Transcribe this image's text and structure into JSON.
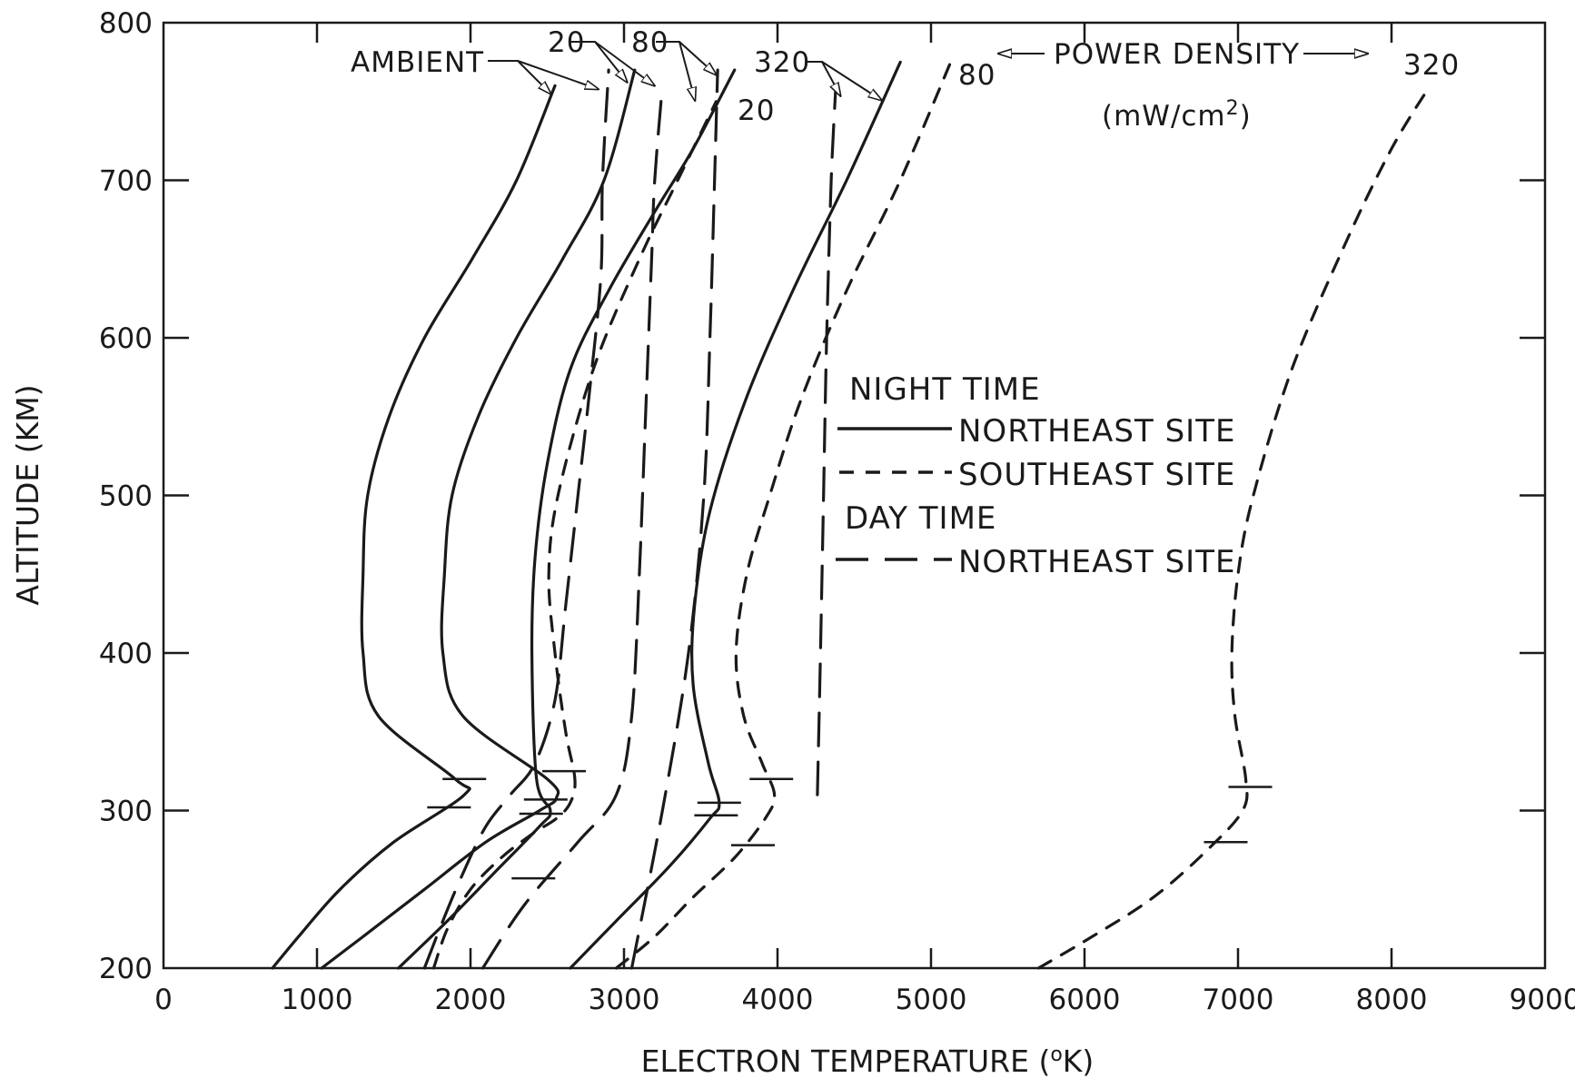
{
  "chart_data": {
    "type": "line",
    "xlabel": "ELECTRON TEMPERATURE (",
    "xlabel_sup": "o",
    "xlabel_tail": "K)",
    "ylabel": "ALTITUDE (KM)",
    "xlim": [
      0,
      9000
    ],
    "ylim": [
      200,
      800
    ],
    "x_ticks": [
      0,
      1000,
      2000,
      3000,
      4000,
      5000,
      6000,
      7000,
      8000,
      9000
    ],
    "x_tick_labels": [
      "0",
      "1000",
      "2000",
      "3000",
      "4000",
      "5000",
      "6000",
      "7000",
      "8000",
      "9000"
    ],
    "y_ticks": [
      200,
      300,
      400,
      500,
      600,
      700,
      800
    ],
    "y_tick_labels": [
      "200",
      "300",
      "400",
      "500",
      "600",
      "700",
      "800"
    ],
    "grid": false,
    "legend_position": "center-right",
    "legend": {
      "night_heading": "NIGHT TIME",
      "night_ne": "NORTHEAST SITE",
      "night_se": "SOUTHEAST SITE",
      "day_heading": "DAY TIME",
      "day_ne": "NORTHEAST SITE"
    },
    "annotations": {
      "ambient": "AMBIENT",
      "p20_top": "20",
      "p80_top": "80",
      "p320_top": "320",
      "p20_right": "20",
      "p80_right": "80",
      "p320_far": "320",
      "power_density": "POWER DENSITY",
      "units_main": "(mW/cm",
      "units_sup": "2",
      "units_tail": ")"
    },
    "series": [
      {
        "group": "night-northeast",
        "label": "AMBIENT",
        "style": "solid",
        "x": [
          710,
          880,
          1150,
          1500,
          1960,
          1900,
          1400,
          1300,
          1300,
          1330,
          1470,
          1700,
          2010,
          2300,
          2550
        ],
        "y": [
          200,
          220,
          250,
          280,
          310,
          320,
          360,
          400,
          450,
          500,
          550,
          600,
          650,
          700,
          760
        ]
      },
      {
        "group": "night-northeast",
        "label": "20",
        "style": "solid",
        "x": [
          1030,
          1300,
          1700,
          2100,
          2450,
          2560,
          2500,
          1950,
          1820,
          1830,
          1880,
          2050,
          2300,
          2600,
          2870,
          3070
        ],
        "y": [
          200,
          220,
          250,
          280,
          300,
          308,
          320,
          360,
          400,
          450,
          500,
          550,
          600,
          650,
          700,
          770
        ]
      },
      {
        "group": "night-northeast",
        "label": "80",
        "style": "solid",
        "x": [
          1530,
          1850,
          2150,
          2450,
          2520,
          2430,
          2400,
          2420,
          2500,
          2650,
          2900,
          3200,
          3450,
          3720
        ],
        "y": [
          200,
          230,
          260,
          290,
          300,
          320,
          400,
          460,
          520,
          580,
          630,
          680,
          720,
          770
        ]
      },
      {
        "group": "night-northeast",
        "label": "320",
        "style": "solid",
        "x": [
          2650,
          2950,
          3300,
          3560,
          3620,
          3550,
          3450,
          3460,
          3560,
          3790,
          4100,
          4450,
          4800
        ],
        "y": [
          200,
          230,
          265,
          295,
          305,
          330,
          380,
          430,
          490,
          560,
          630,
          700,
          775
        ]
      },
      {
        "group": "night-southeast",
        "label": "20",
        "style": "dash",
        "x": [
          1760,
          1850,
          2000,
          2200,
          2400,
          2560,
          2650,
          2680,
          2620,
          2550,
          2510,
          2570,
          2800,
          3100,
          3350,
          3600
        ],
        "y": [
          200,
          225,
          250,
          270,
          285,
          295,
          305,
          320,
          350,
          400,
          450,
          500,
          580,
          650,
          700,
          750
        ]
      },
      {
        "group": "night-southeast",
        "label": "80",
        "style": "dash",
        "x": [
          2950,
          3200,
          3450,
          3720,
          3920,
          3980,
          3900,
          3780,
          3730,
          3800,
          3950,
          4150,
          4450,
          4800,
          5150
        ],
        "y": [
          200,
          220,
          245,
          270,
          295,
          310,
          330,
          360,
          400,
          450,
          500,
          560,
          630,
          700,
          780
        ]
      },
      {
        "group": "night-southeast",
        "label": "320",
        "style": "dash",
        "x": [
          5700,
          6050,
          6450,
          6800,
          7030,
          7050,
          6980,
          6960,
          7000,
          7100,
          7350,
          7700,
          8000,
          8250
        ],
        "y": [
          200,
          220,
          245,
          275,
          300,
          320,
          360,
          400,
          450,
          500,
          580,
          660,
          720,
          760
        ]
      },
      {
        "group": "day-northeast",
        "label": "AMBIENT",
        "style": "longdash",
        "x": [
          1700,
          1820,
          1950,
          2100,
          2260,
          2420,
          2550,
          2620,
          2700,
          2780,
          2850,
          2860,
          2900
        ],
        "y": [
          200,
          230,
          260,
          290,
          310,
          330,
          370,
          430,
          500,
          570,
          640,
          700,
          770
        ]
      },
      {
        "group": "day-northeast",
        "label": "20",
        "style": "longdash",
        "x": [
          2080,
          2350,
          2700,
          2950,
          3050,
          3100,
          3140,
          3180,
          3200,
          3250
        ],
        "y": [
          200,
          240,
          280,
          310,
          360,
          450,
          550,
          650,
          700,
          760
        ]
      },
      {
        "group": "day-northeast",
        "label": "80",
        "style": "longdash",
        "x": [
          3050,
          3250,
          3420,
          3520,
          3560,
          3590,
          3610
        ],
        "y": [
          200,
          300,
          400,
          500,
          600,
          700,
          770
        ]
      },
      {
        "group": "day-northeast",
        "label": "320",
        "style": "longdash",
        "x": [
          4260,
          4280,
          4300,
          4320,
          4350,
          4380
        ],
        "y": [
          310,
          400,
          500,
          600,
          700,
          760
        ]
      }
    ]
  }
}
